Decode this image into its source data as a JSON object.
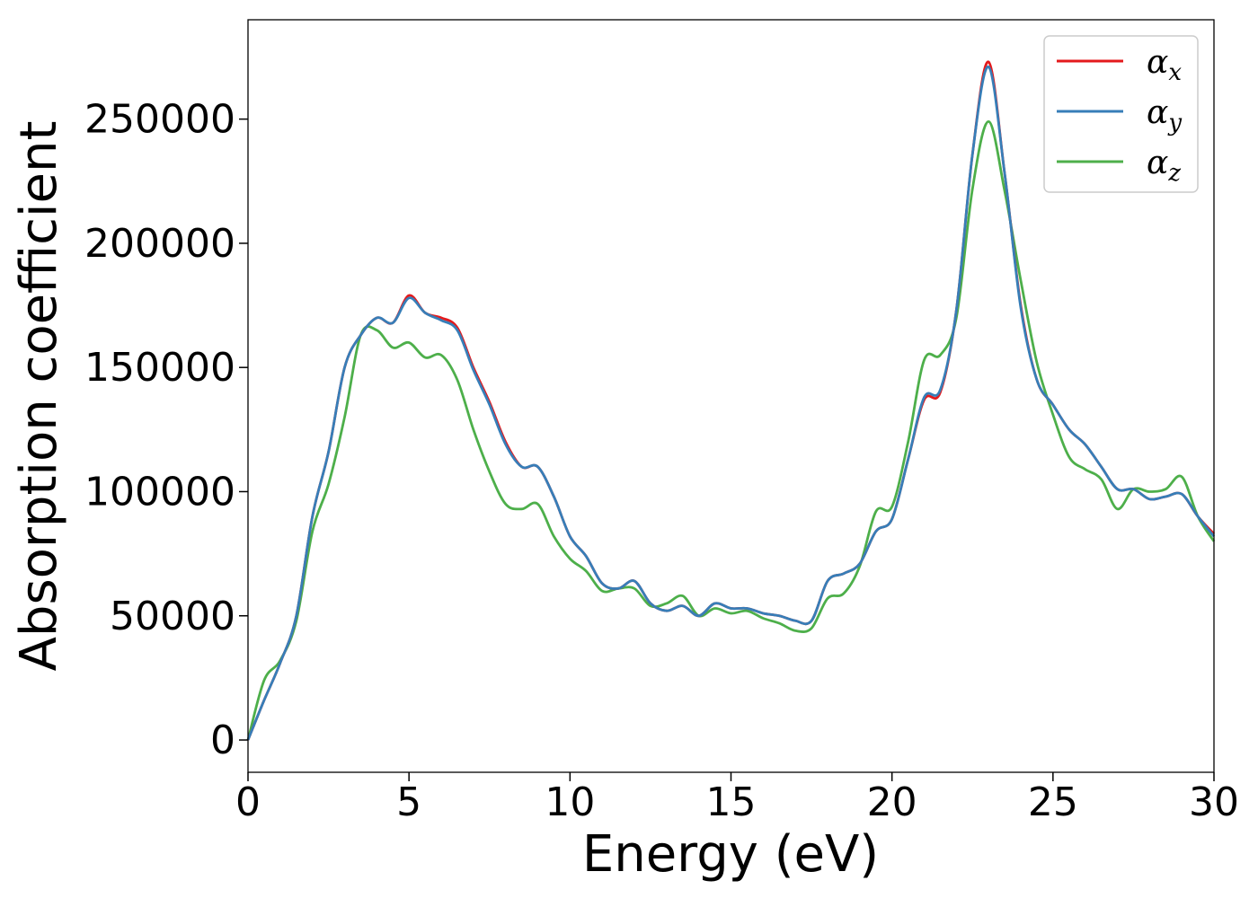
{
  "chart_data": {
    "type": "line",
    "title": "",
    "xlabel": "Energy (eV)",
    "ylabel": "Absorption coefficient",
    "xlim": [
      0,
      30
    ],
    "ylim": [
      -13000,
      290000
    ],
    "xticks": [
      0,
      5,
      10,
      15,
      20,
      25,
      30
    ],
    "xtick_labels": [
      "0",
      "5",
      "10",
      "15",
      "20",
      "25",
      "30"
    ],
    "yticks": [
      0,
      50000,
      100000,
      150000,
      200000,
      250000
    ],
    "ytick_labels": [
      "0",
      "50000",
      "100000",
      "150000",
      "200000",
      "250000"
    ],
    "grid": false,
    "legend": "top-right",
    "x": [
      0,
      0.5,
      1,
      1.5,
      2,
      2.5,
      3,
      3.5,
      4,
      4.5,
      5,
      5.5,
      6,
      6.5,
      7,
      7.5,
      8,
      8.5,
      9,
      9.5,
      10,
      10.5,
      11,
      11.5,
      12,
      12.5,
      13,
      13.5,
      14,
      14.5,
      15,
      15.5,
      16,
      16.5,
      17,
      17.5,
      18,
      18.5,
      19,
      19.5,
      20,
      20.5,
      21,
      21.5,
      22,
      22.5,
      23,
      23.5,
      24,
      24.5,
      25,
      25.5,
      26,
      26.5,
      27,
      27.5,
      28,
      28.5,
      29,
      29.5,
      30
    ],
    "series": [
      {
        "name": "x",
        "color": "#e41a1c",
        "values": [
          0,
          16000,
          31000,
          50000,
          90000,
          116000,
          150000,
          163000,
          170000,
          168000,
          179000,
          172000,
          170000,
          166000,
          150000,
          136000,
          120000,
          110000,
          110000,
          98000,
          82000,
          74000,
          63000,
          61000,
          64000,
          55000,
          52000,
          54000,
          50000,
          55000,
          53000,
          53000,
          51000,
          50000,
          48000,
          48000,
          64000,
          67000,
          71000,
          84000,
          89000,
          113000,
          137000,
          140000,
          173000,
          236000,
          273000,
          228000,
          175000,
          145000,
          135000,
          125000,
          119000,
          110000,
          101000,
          101000,
          97000,
          98000,
          99000,
          90000,
          83000
        ]
      },
      {
        "name": "y",
        "color": "#377eb8",
        "values": [
          0,
          16000,
          31000,
          50000,
          90000,
          116000,
          150000,
          163000,
          170000,
          168000,
          178000,
          172000,
          169000,
          165000,
          149000,
          135000,
          119000,
          110000,
          110000,
          98000,
          82000,
          74000,
          63000,
          61000,
          64000,
          55000,
          52000,
          54000,
          50000,
          55000,
          53000,
          53000,
          51000,
          50000,
          48000,
          48000,
          64000,
          67000,
          71000,
          84000,
          89000,
          113000,
          138000,
          141000,
          173000,
          236000,
          271000,
          228000,
          174000,
          145000,
          135000,
          125000,
          119000,
          110000,
          101000,
          101000,
          97000,
          98000,
          99000,
          90000,
          82000
        ]
      },
      {
        "name": "z",
        "color": "#4daf4a",
        "values": [
          0,
          24000,
          32000,
          48000,
          84000,
          103000,
          130000,
          163000,
          165000,
          158000,
          160000,
          154000,
          155000,
          145000,
          125000,
          108000,
          95000,
          93000,
          95000,
          82000,
          73000,
          68000,
          60000,
          61000,
          61000,
          54000,
          55000,
          58000,
          50000,
          53000,
          51000,
          52000,
          49000,
          47000,
          44000,
          45000,
          57000,
          59000,
          70000,
          92000,
          94000,
          120000,
          153000,
          155000,
          170000,
          222000,
          249000,
          221000,
          185000,
          152000,
          131000,
          114000,
          109000,
          105000,
          93000,
          101000,
          100000,
          101000,
          106000,
          90000,
          80000
        ]
      }
    ]
  },
  "legend": {
    "items": [
      {
        "symbol": "α",
        "sub": "x",
        "color": "#e41a1c"
      },
      {
        "symbol": "α",
        "sub": "y",
        "color": "#377eb8"
      },
      {
        "symbol": "α",
        "sub": "z",
        "color": "#4daf4a"
      }
    ]
  }
}
